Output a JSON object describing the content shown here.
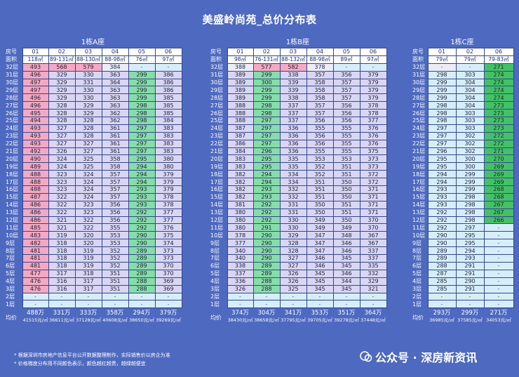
{
  "title": "美盛岭尚苑_总价分布表",
  "row_label": "房号",
  "area_label": "面积",
  "avg_label": "均价",
  "floors": [
    "32层",
    "31层",
    "30层",
    "29层",
    "28层",
    "27层",
    "26层",
    "25层",
    "24层",
    "23层",
    "22层",
    "21层",
    "20层",
    "19层",
    "18层",
    "17层",
    "16层",
    "15层",
    "14层",
    "13层",
    "12层",
    "11层",
    "10层",
    "9层",
    "8层",
    "7层",
    "6层",
    "5层",
    "4层",
    "3层",
    "2层",
    "1层"
  ],
  "buildings": [
    {
      "name": "1栋A座",
      "units": [
        "01",
        "02",
        "03",
        "04",
        "05",
        "06"
      ],
      "areas": [
        "118㎡",
        "89-131㎡",
        "88-130㎡",
        "88-98㎡",
        "76㎡",
        "97㎡"
      ],
      "avg": [
        "488万",
        "331万",
        "333万",
        "358万",
        "294万",
        "379万"
      ],
      "unit_price": [
        "41515元/㎡",
        "36611元/㎡",
        "37128元/㎡",
        "40608元/㎡",
        "38650元/㎡",
        "39269元/㎡"
      ],
      "cols": [
        [
          "493",
          "496",
          "497",
          "497",
          "496",
          "496",
          "495",
          "494",
          "493",
          "493",
          "493",
          "492",
          "490",
          "489",
          "488",
          "488",
          "488",
          "487",
          "486",
          "486",
          "486",
          "485",
          "483",
          "482",
          "481",
          "481",
          "481",
          "477",
          "476",
          "476",
          "-",
          "-"
        ],
        [
          "568",
          "329",
          "329",
          "329",
          "329",
          "328",
          "328",
          "328",
          "327",
          "327",
          "327",
          "326",
          "324",
          "324",
          "323",
          "323",
          "323",
          "322",
          "322",
          "322",
          "321",
          "321",
          "319",
          "318",
          "318",
          "318",
          "318",
          "317",
          "316",
          "316",
          "-",
          "-"
        ],
        [
          "579",
          "330",
          "331",
          "330",
          "330",
          "329",
          "329",
          "328",
          "328",
          "328",
          "327",
          "327",
          "325",
          "325",
          "324",
          "324",
          "324",
          "324",
          "323",
          "323",
          "322",
          "322",
          "320",
          "320",
          "319",
          "319",
          "319",
          "318",
          "317",
          "317",
          "-",
          "-"
        ],
        [
          "384",
          "363",
          "364",
          "363",
          "363",
          "363",
          "362",
          "362",
          "361",
          "361",
          "361",
          "361",
          "358",
          "358",
          "357",
          "357",
          "357",
          "357",
          "356",
          "356",
          "356",
          "355",
          "353",
          "353",
          "352",
          "352",
          "352",
          "351",
          "351",
          "351",
          "-",
          "-"
        ],
        [
          "-",
          "299",
          "299",
          "299",
          "299",
          "298",
          "298",
          "298",
          "297",
          "297",
          "297",
          "297",
          "295",
          "294",
          "294",
          "294",
          "293",
          "293",
          "293",
          "292",
          "292",
          "292",
          "290",
          "290",
          "289",
          "289",
          "289",
          "289",
          "288",
          "288",
          "-",
          "-"
        ],
        [
          "-",
          "386",
          "386",
          "386",
          "385",
          "385",
          "385",
          "384",
          "383",
          "383",
          "383",
          "383",
          "380",
          "380",
          "379",
          "379",
          "379",
          "378",
          "378",
          "377",
          "377",
          "376",
          "375",
          "374",
          "373",
          "373",
          "370",
          "370",
          "369",
          "369",
          "-",
          "-"
        ]
      ],
      "pink": [
        [
          true,
          true,
          true,
          true,
          true,
          true,
          true,
          true,
          true,
          true,
          true,
          true,
          true,
          true,
          true,
          true,
          true,
          true,
          true,
          true,
          true,
          true,
          true,
          true,
          true,
          true,
          true,
          true,
          true,
          true
        ],
        [
          true
        ]
      ]
    },
    {
      "name": "1栋B座",
      "units": [
        "01",
        "02",
        "03",
        "04",
        "05",
        "06"
      ],
      "areas": [
        "98㎡",
        "76-131㎡",
        "88-132㎡",
        "88-98㎡",
        "89㎡",
        "97㎡"
      ],
      "avg": [
        "374万",
        "304万",
        "341万",
        "353万",
        "351万",
        "364万"
      ],
      "unit_price": [
        "38430元/㎡",
        "38658元/㎡",
        "37795元/㎡",
        "39705元/㎡",
        "39278元/㎡",
        "37448元/㎡"
      ],
      "cols": [
        [
          "388",
          "389",
          "389",
          "389",
          "389",
          "388",
          "388",
          "388",
          "387",
          "387",
          "386",
          "384",
          "383",
          "383",
          "382",
          "382",
          "382",
          "382",
          "381",
          "380",
          "380",
          "380",
          "378",
          "377",
          "340",
          "340",
          "338",
          "337",
          "336",
          "326",
          "-",
          "-"
        ],
        [
          "577",
          "299",
          "300",
          "299",
          "299",
          "298",
          "298",
          "297",
          "297",
          "297",
          "297",
          "296",
          "295",
          "295",
          "294",
          "294",
          "293",
          "293",
          "292",
          "292",
          "292",
          "291",
          "290",
          "290",
          "290",
          "290",
          "289",
          "289",
          "288",
          "288",
          "-",
          "-"
        ],
        [
          "582",
          "338",
          "339",
          "339",
          "338",
          "337",
          "337",
          "337",
          "336",
          "336",
          "336",
          "336",
          "335",
          "335",
          "334",
          "334",
          "332",
          "332",
          "331",
          "331",
          "330",
          "330",
          "329",
          "328",
          "328",
          "327",
          "327",
          "326",
          "326",
          "325",
          "-",
          "-"
        ],
        [
          "378",
          "357",
          "358",
          "358",
          "358",
          "357",
          "357",
          "356",
          "355",
          "356",
          "356",
          "355",
          "353",
          "352",
          "352",
          "351",
          "351",
          "351",
          "350",
          "350",
          "349",
          "349",
          "347",
          "347",
          "347",
          "346",
          "346",
          "345",
          "345",
          "345",
          "-",
          "-"
        ],
        [
          "-",
          "356",
          "357",
          "357",
          "357",
          "356",
          "356",
          "356",
          "355",
          "355",
          "355",
          "355",
          "353",
          "351",
          "351",
          "350",
          "350",
          "350",
          "351",
          "351",
          "350",
          "349",
          "348",
          "346",
          "346",
          "345",
          "345",
          "346",
          "344",
          "345",
          "-",
          "-"
        ],
        [
          "-",
          "379",
          "379",
          "379",
          "379",
          "378",
          "378",
          "377",
          "376",
          "376",
          "376",
          "375",
          "373",
          "373",
          "372",
          "372",
          "371",
          "371",
          "371",
          "371",
          "370",
          "370",
          "367",
          "367",
          "337",
          "337",
          "335",
          "332",
          "329",
          "321",
          "-",
          "-"
        ]
      ]
    },
    {
      "name": "1栋C座",
      "units": [
        "01",
        "02",
        "06"
      ],
      "areas": [
        "79㎡",
        "79㎡",
        "79-83㎡"
      ],
      "avg": [
        "293万",
        "299万",
        "271万"
      ],
      "unit_price": [
        "36985元/㎡",
        "37585元/㎡",
        "34053元/㎡"
      ],
      "cols": [
        [
          "-",
          "298",
          "299",
          "299",
          "299",
          "298",
          "298",
          "298",
          "297",
          "297",
          "297",
          "296",
          "295",
          "295",
          "294",
          "294",
          "293",
          "293",
          "293",
          "292",
          "292",
          "292",
          "290",
          "290",
          "289",
          "289",
          "288",
          "287",
          "285",
          "285",
          "-",
          "-"
        ],
        [
          "-",
          "303",
          "304",
          "304",
          "304",
          "304",
          "303",
          "303",
          "303",
          "302",
          "302",
          "302",
          "300",
          "300",
          "299",
          "299",
          "299",
          "298",
          "298",
          "298",
          "298",
          "297",
          "295",
          "295",
          "294",
          "293",
          "291",
          "291",
          "290",
          "291",
          "-",
          "-"
        ],
        [
          "271",
          "274",
          "274",
          "274",
          "274",
          "273",
          "273",
          "273",
          "273",
          "272",
          "272",
          "271",
          "270",
          "269",
          "269",
          "269",
          "268",
          "268",
          "267",
          "267",
          "266",
          "-",
          "-",
          "-",
          "-",
          "-",
          "-",
          "-",
          "-",
          "-",
          "-",
          "-"
        ]
      ]
    }
  ],
  "footnotes": [
    "* 根据深圳市房地产信息平台公开数据整理制作，实际销售价以房企为准",
    "* 价格梯度分布用不同颜色表示，颜色越红越贵，越绿越便宜"
  ],
  "watermark": "公众号 · 深房新资讯",
  "colors": {
    "background": "#4E69C0",
    "pink": "#F4A9C3",
    "lavender": "#D9D6F4",
    "light_blue": "#D6EEFB",
    "light_green": "#86DDA9",
    "green": "#44C168"
  }
}
